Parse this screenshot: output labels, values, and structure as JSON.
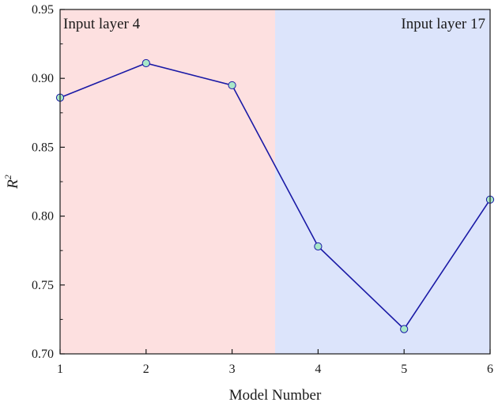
{
  "chart_data": {
    "type": "line",
    "xlabel": "Model Number",
    "ylabel": "R",
    "ylabel_superscript": "2",
    "xlim": [
      1,
      6
    ],
    "ylim": [
      0.7,
      0.95
    ],
    "x_ticks": [
      "1",
      "2",
      "3",
      "4",
      "5",
      "6"
    ],
    "y_ticks": [
      "0.70",
      "0.75",
      "0.80",
      "0.85",
      "0.90",
      "0.95"
    ],
    "grid": false,
    "series": [
      {
        "x": [
          1,
          2,
          3,
          4,
          5,
          6
        ],
        "y": [
          0.886,
          0.911,
          0.895,
          0.778,
          0.718,
          0.812
        ],
        "line_color": "#1a1aa6",
        "marker_fill": "#a8e8c8",
        "marker_edge": "#1a1aa6"
      }
    ],
    "regions": [
      {
        "label": "Input layer 4",
        "x_start": 1,
        "x_end": 3.5,
        "color": "#fde0e0",
        "label_position": "top-left"
      },
      {
        "label": "Input layer 17",
        "x_start": 3.5,
        "x_end": 6,
        "color": "#dce4fb",
        "label_position": "top-right"
      }
    ]
  }
}
